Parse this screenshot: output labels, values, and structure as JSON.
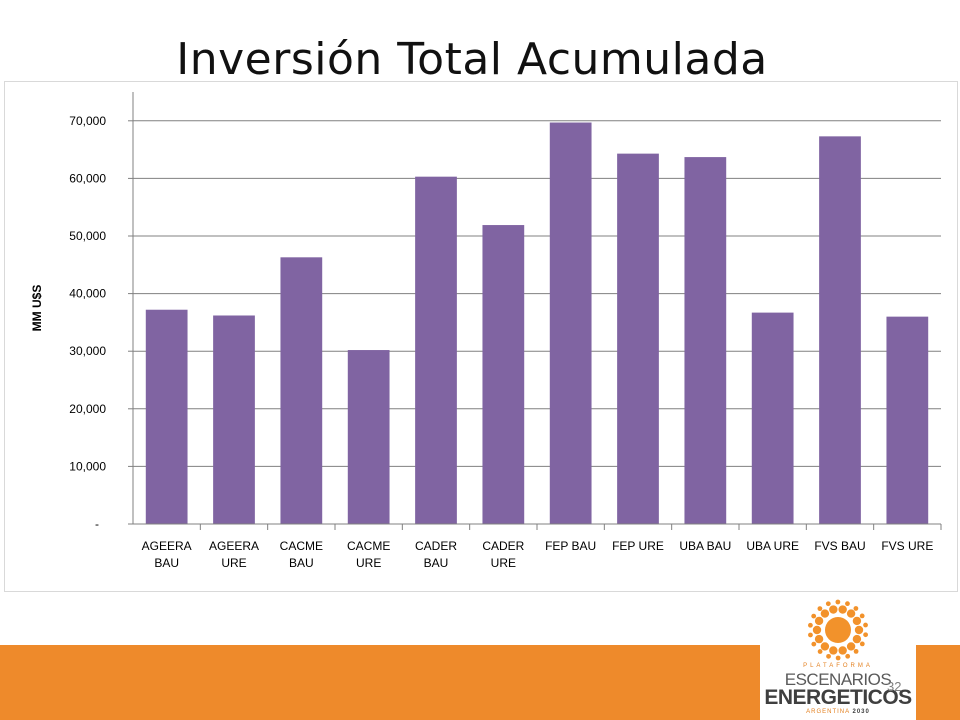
{
  "slide": {
    "title": "Inversión Total Acumulada",
    "page_number": "32"
  },
  "logo": {
    "line1": "PLATAFORMA",
    "line2": "ESCENARIOS",
    "line3": "ENERGETICOS",
    "line4a": "ARGENTINA",
    "line4b": "2030",
    "color": "#f2922b"
  },
  "colors": {
    "bar": "#8064a2",
    "footer": "#ee8a2b",
    "grid": "#808080"
  },
  "chart_data": {
    "type": "bar",
    "title": "",
    "xlabel": "",
    "ylabel": "MM U$S",
    "ylim": [
      0,
      75000
    ],
    "yticks": [
      0,
      10000,
      20000,
      30000,
      40000,
      50000,
      60000,
      70000
    ],
    "ytick_labels": [
      "-",
      "10,000",
      "20,000",
      "30,000",
      "40,000",
      "50,000",
      "60,000",
      "70,000"
    ],
    "grid": true,
    "legend": "none",
    "categories": [
      [
        "AGEERA",
        "BAU"
      ],
      [
        "AGEERA",
        "URE"
      ],
      [
        "CACME",
        "BAU"
      ],
      [
        "CACME",
        "URE"
      ],
      [
        "CADER",
        "BAU"
      ],
      [
        "CADER",
        "URE"
      ],
      [
        "FEP BAU"
      ],
      [
        "FEP URE"
      ],
      [
        "UBA BAU"
      ],
      [
        "UBA URE"
      ],
      [
        "FVS BAU"
      ],
      [
        "FVS URE"
      ]
    ],
    "values": [
      37200,
      36200,
      46300,
      30200,
      60300,
      51900,
      69700,
      64300,
      63700,
      36700,
      67300,
      36000
    ]
  }
}
